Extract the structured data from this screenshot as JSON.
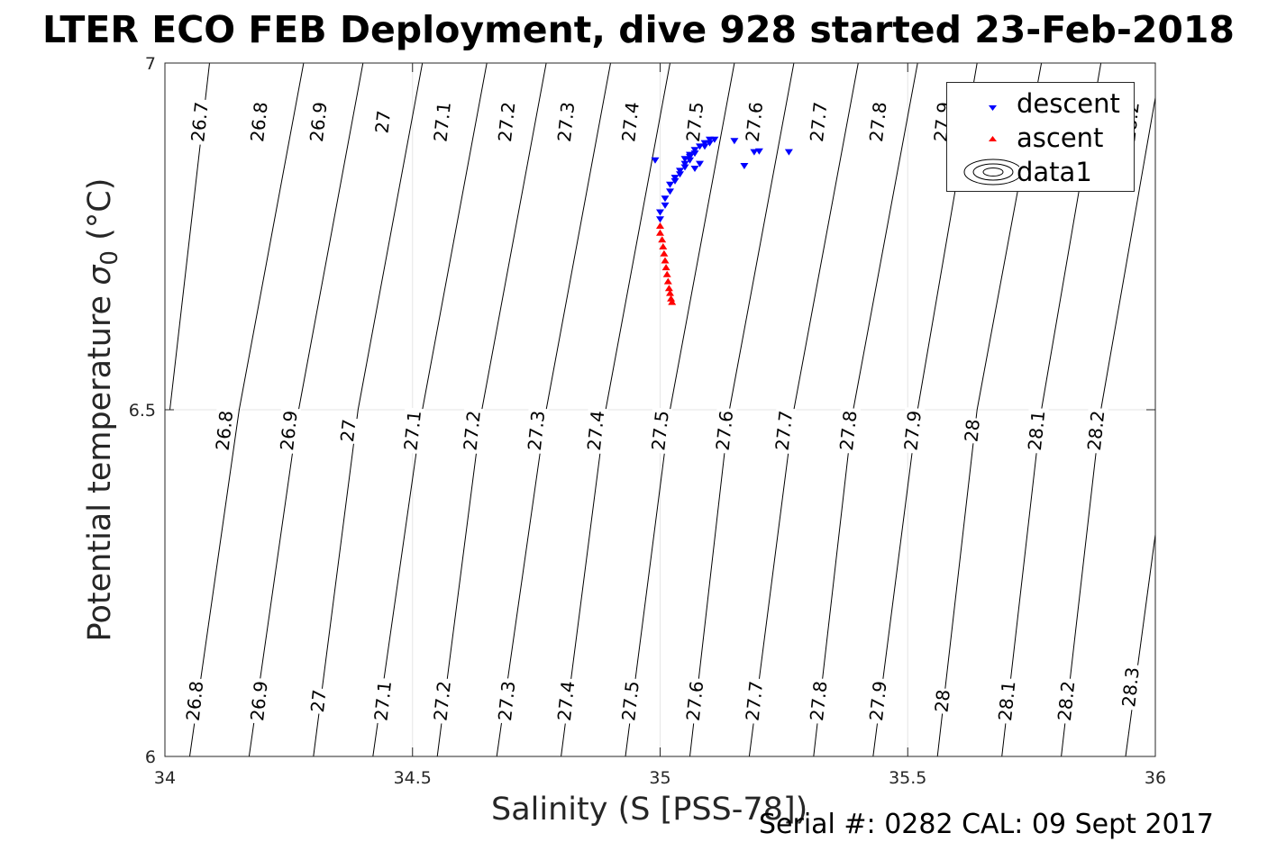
{
  "title": "LTER ECO FEB Deployment, dive 928 started 23-Feb-2018",
  "footer": "Serial #: 0282  CAL: 09 Sept 2017",
  "chart_data": {
    "type": "scatter",
    "xlabel": "Salinity (S [PSS-78])",
    "ylabel": "Potential temperature",
    "ylabel_symbol": "σ",
    "ylabel_subscript": "0",
    "ylabel_unit": "(°C)",
    "xlim": [
      34,
      36
    ],
    "ylim": [
      6,
      7
    ],
    "xticks": [
      34,
      34.5,
      35,
      35.5,
      36
    ],
    "xtick_labels": [
      "34",
      "34.5",
      "35",
      "35.5",
      "36"
    ],
    "yticks": [
      6,
      6.5,
      7
    ],
    "ytick_labels": [
      "6",
      "6.5",
      "7"
    ],
    "grid": true,
    "legend_position": "top-right",
    "legend": [
      {
        "label": "descent",
        "color": "#0000ff",
        "marker": "triangle-down"
      },
      {
        "label": "ascent",
        "color": "#ff0000",
        "marker": "triangle-up"
      },
      {
        "label": "data1",
        "color": "#000000",
        "marker": "contour"
      }
    ],
    "series": [
      {
        "name": "descent",
        "color": "#0000ff",
        "marker": "triangle-down",
        "x": [
          34.99,
          35.0,
          35.0,
          35.01,
          35.01,
          35.02,
          35.02,
          35.03,
          35.04,
          35.05,
          35.05,
          35.06,
          35.06,
          35.07,
          35.07,
          35.08,
          35.09,
          35.1,
          35.1,
          35.11,
          35.05,
          35.06,
          35.07,
          35.08,
          35.15,
          35.17,
          35.19,
          35.2,
          35.26,
          35.09,
          35.04,
          35.03
        ],
        "y": [
          6.86,
          6.775,
          6.785,
          6.795,
          6.805,
          6.815,
          6.825,
          6.835,
          6.845,
          6.85,
          6.855,
          6.86,
          6.865,
          6.87,
          6.875,
          6.88,
          6.885,
          6.885,
          6.89,
          6.89,
          6.862,
          6.868,
          6.848,
          6.855,
          6.888,
          6.852,
          6.872,
          6.873,
          6.872,
          6.88,
          6.84,
          6.83
        ]
      },
      {
        "name": "ascent",
        "color": "#ff0000",
        "marker": "triangle-up",
        "x": [
          35.0,
          35.0,
          35.004,
          35.006,
          35.008,
          35.01,
          35.012,
          35.014,
          35.016,
          35.018,
          35.02,
          35.022,
          35.024
        ],
        "y": [
          6.765,
          6.755,
          6.745,
          6.735,
          6.725,
          6.715,
          6.705,
          6.695,
          6.685,
          6.675,
          6.668,
          6.66,
          6.655
        ]
      }
    ],
    "contour_lines": [
      {
        "x": [
          34.01,
          34.09
        ],
        "y": [
          6.5,
          7.0
        ]
      },
      {
        "x": [
          34.05,
          34.15,
          34.28
        ],
        "y": [
          6.0,
          6.5,
          7.0
        ]
      },
      {
        "x": [
          34.17,
          34.27,
          34.4
        ],
        "y": [
          6.0,
          6.5,
          7.0
        ]
      },
      {
        "x": [
          34.3,
          34.39,
          34.52
        ],
        "y": [
          6.0,
          6.5,
          7.0
        ]
      },
      {
        "x": [
          34.42,
          34.52,
          34.65
        ],
        "y": [
          6.0,
          6.5,
          7.0
        ]
      },
      {
        "x": [
          34.55,
          34.64,
          34.77
        ],
        "y": [
          6.0,
          6.5,
          7.0
        ]
      },
      {
        "x": [
          34.67,
          34.77,
          34.9
        ],
        "y": [
          6.0,
          6.5,
          7.0
        ]
      },
      {
        "x": [
          34.8,
          34.89,
          35.02
        ],
        "y": [
          6.0,
          6.5,
          7.0
        ]
      },
      {
        "x": [
          34.93,
          35.02,
          35.15
        ],
        "y": [
          6.0,
          6.5,
          7.0
        ]
      },
      {
        "x": [
          35.06,
          35.14,
          35.27
        ],
        "y": [
          6.0,
          6.5,
          7.0
        ]
      },
      {
        "x": [
          35.18,
          35.27,
          35.4
        ],
        "y": [
          6.0,
          6.5,
          7.0
        ]
      },
      {
        "x": [
          35.31,
          35.39,
          35.52
        ],
        "y": [
          6.0,
          6.5,
          7.0
        ]
      },
      {
        "x": [
          35.43,
          35.52,
          35.64
        ],
        "y": [
          6.0,
          6.5,
          7.0
        ]
      },
      {
        "x": [
          35.56,
          35.64,
          35.77
        ],
        "y": [
          6.0,
          6.5,
          7.0
        ]
      },
      {
        "x": [
          35.69,
          35.77,
          35.89
        ],
        "y": [
          6.0,
          6.5,
          7.0
        ]
      },
      {
        "x": [
          35.81,
          35.89,
          36.0
        ],
        "y": [
          6.0,
          6.5,
          6.95
        ]
      },
      {
        "x": [
          35.94,
          36.0
        ],
        "y": [
          6.0,
          6.32
        ]
      }
    ],
    "contour_labels": [
      {
        "text": "26.7",
        "x": 34.07,
        "y": 6.915
      },
      {
        "text": "26.8",
        "x": 34.19,
        "y": 6.915
      },
      {
        "text": "26.9",
        "x": 34.31,
        "y": 6.915
      },
      {
        "text": "27",
        "x": 34.44,
        "y": 6.915
      },
      {
        "text": "27.1",
        "x": 34.56,
        "y": 6.915
      },
      {
        "text": "27.2",
        "x": 34.69,
        "y": 6.915
      },
      {
        "text": "27.3",
        "x": 34.81,
        "y": 6.915
      },
      {
        "text": "27.4",
        "x": 34.94,
        "y": 6.915
      },
      {
        "text": "27.5",
        "x": 35.07,
        "y": 6.915
      },
      {
        "text": "27.6",
        "x": 35.19,
        "y": 6.915
      },
      {
        "text": "27.7",
        "x": 35.32,
        "y": 6.915
      },
      {
        "text": "27.8",
        "x": 35.44,
        "y": 6.915
      },
      {
        "text": "27.9",
        "x": 35.57,
        "y": 6.915
      },
      {
        "text": "28.2",
        "x": 35.95,
        "y": 6.915
      },
      {
        "text": "26.8",
        "x": 34.12,
        "y": 6.47
      },
      {
        "text": "26.9",
        "x": 34.25,
        "y": 6.47
      },
      {
        "text": "27",
        "x": 34.37,
        "y": 6.47
      },
      {
        "text": "27.1",
        "x": 34.5,
        "y": 6.47
      },
      {
        "text": "27.2",
        "x": 34.62,
        "y": 6.47
      },
      {
        "text": "27.3",
        "x": 34.75,
        "y": 6.47
      },
      {
        "text": "27.4",
        "x": 34.87,
        "y": 6.47
      },
      {
        "text": "27.5",
        "x": 35.0,
        "y": 6.47
      },
      {
        "text": "27.6",
        "x": 35.13,
        "y": 6.47
      },
      {
        "text": "27.7",
        "x": 35.25,
        "y": 6.47
      },
      {
        "text": "27.8",
        "x": 35.38,
        "y": 6.47
      },
      {
        "text": "27.9",
        "x": 35.51,
        "y": 6.47
      },
      {
        "text": "28",
        "x": 35.63,
        "y": 6.47
      },
      {
        "text": "28.1",
        "x": 35.76,
        "y": 6.47
      },
      {
        "text": "28.2",
        "x": 35.88,
        "y": 6.47
      },
      {
        "text": "26.8",
        "x": 34.06,
        "y": 6.08
      },
      {
        "text": "26.9",
        "x": 34.19,
        "y": 6.08
      },
      {
        "text": "27",
        "x": 34.31,
        "y": 6.08
      },
      {
        "text": "27.1",
        "x": 34.44,
        "y": 6.08
      },
      {
        "text": "27.2",
        "x": 34.56,
        "y": 6.08
      },
      {
        "text": "27.3",
        "x": 34.69,
        "y": 6.08
      },
      {
        "text": "27.4",
        "x": 34.81,
        "y": 6.08
      },
      {
        "text": "27.5",
        "x": 34.94,
        "y": 6.08
      },
      {
        "text": "27.6",
        "x": 35.07,
        "y": 6.08
      },
      {
        "text": "27.7",
        "x": 35.19,
        "y": 6.08
      },
      {
        "text": "27.8",
        "x": 35.32,
        "y": 6.08
      },
      {
        "text": "27.9",
        "x": 35.44,
        "y": 6.08
      },
      {
        "text": "28",
        "x": 35.57,
        "y": 6.08
      },
      {
        "text": "28.1",
        "x": 35.7,
        "y": 6.08
      },
      {
        "text": "28.2",
        "x": 35.82,
        "y": 6.08
      },
      {
        "text": "28.3",
        "x": 35.95,
        "y": 6.1
      }
    ]
  }
}
